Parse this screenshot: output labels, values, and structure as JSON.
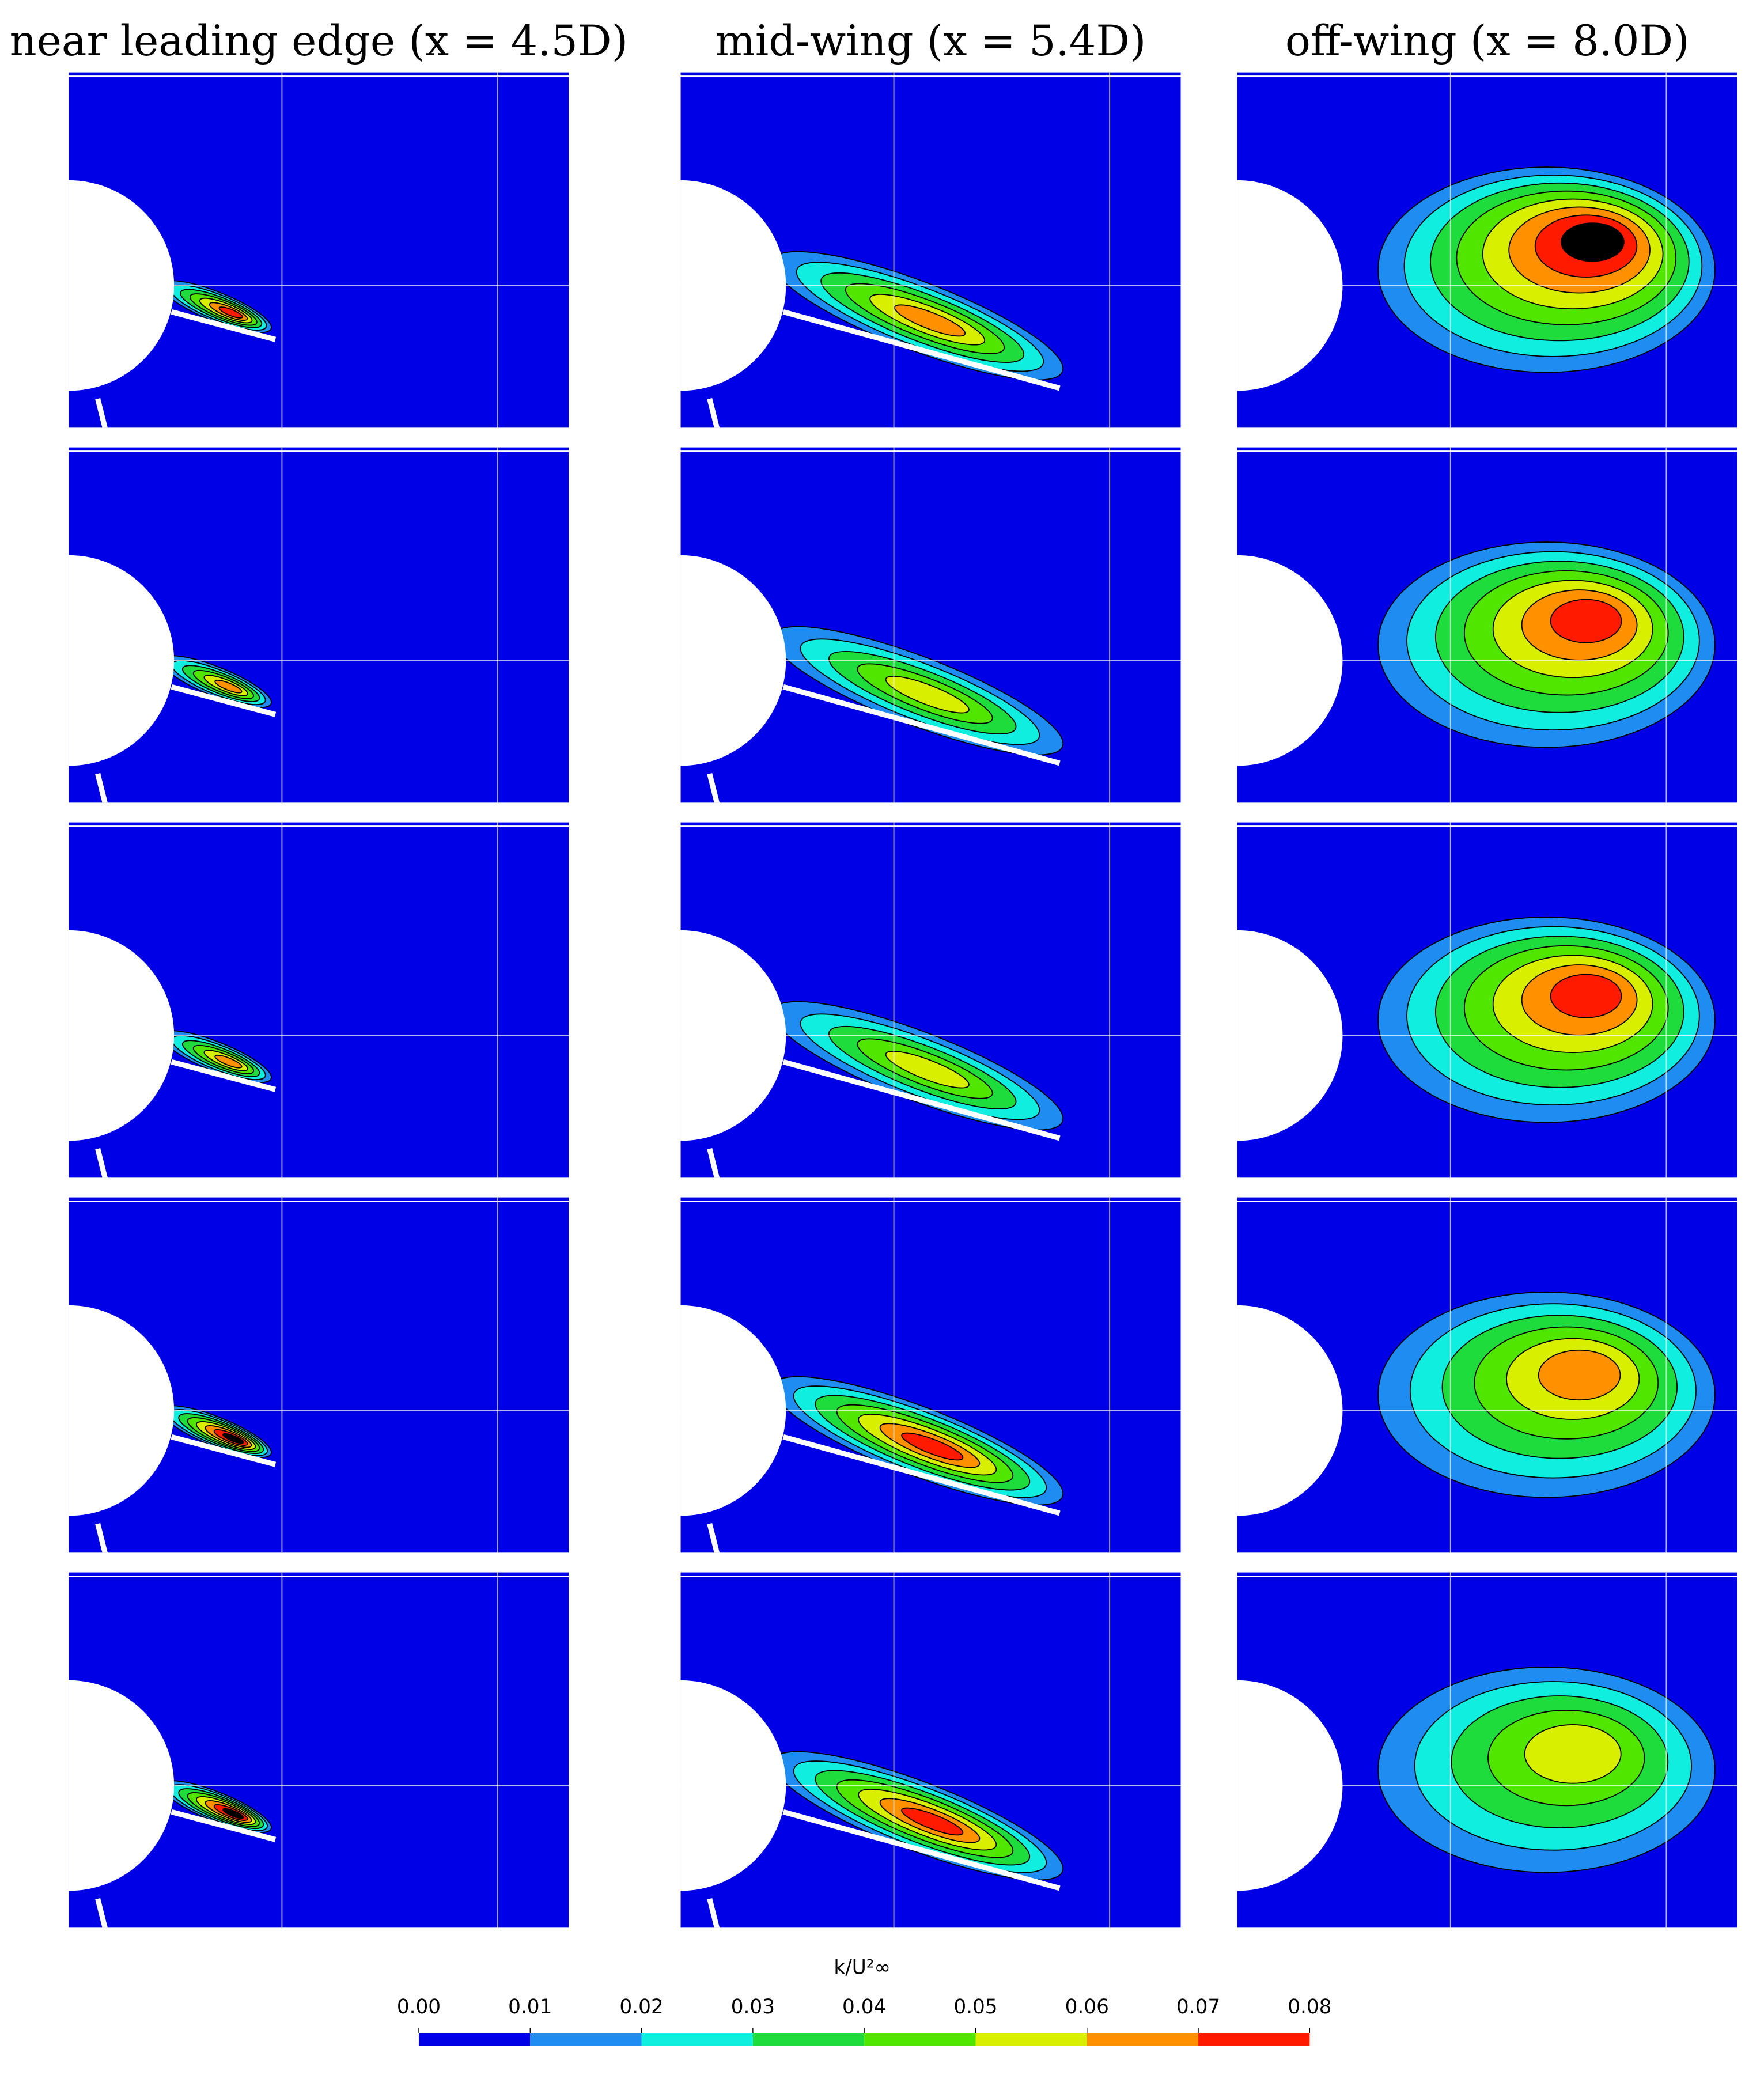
{
  "columns": [
    {
      "title": "near leading edge (x = 4.5D)"
    },
    {
      "title": "mid-wing (x = 5.4D)"
    },
    {
      "title": "off-wing (x = 8.0D)"
    }
  ],
  "colorbar": {
    "label": "k/U²∞",
    "ticks": [
      {
        "value": 0,
        "label": "0.00"
      },
      {
        "value": 0.01,
        "label": "0.01"
      },
      {
        "value": 0.02,
        "label": "0.02"
      },
      {
        "value": 0.03,
        "label": "0.03"
      },
      {
        "value": 0.04,
        "label": "0.04"
      },
      {
        "value": 0.05,
        "label": "0.05"
      },
      {
        "value": 0.06,
        "label": "0.06"
      },
      {
        "value": 0.07,
        "label": "0.07"
      },
      {
        "value": 0.08,
        "label": "0.08"
      }
    ],
    "colors": [
      "#0000e6",
      "#1e8cf0",
      "#10eee0",
      "#1edc3c",
      "#50e600",
      "#d8f000",
      "#ff9000",
      "#ff1a00"
    ]
  }
}
